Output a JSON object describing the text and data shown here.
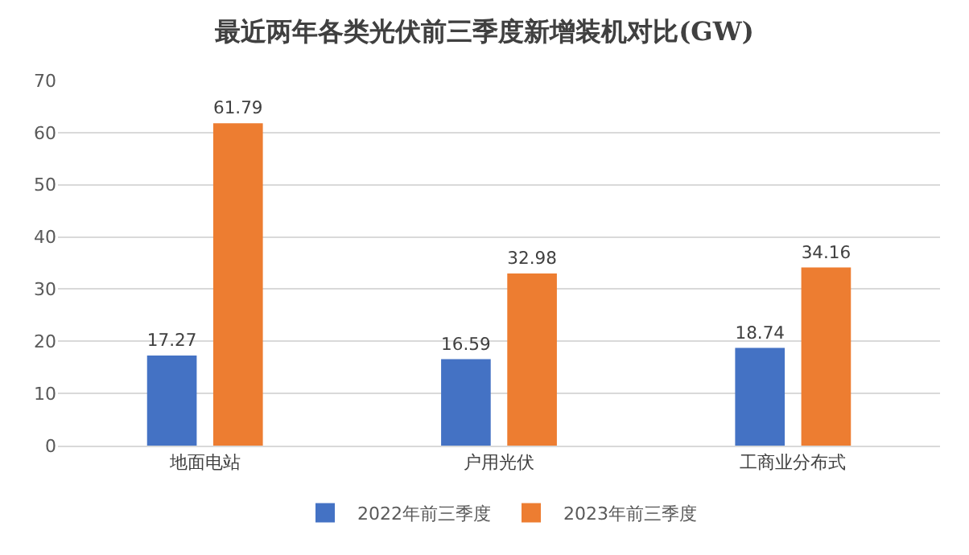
{
  "chart_data": {
    "type": "bar",
    "title": "最近两年各类光伏前三季度新增装机对比(GW)",
    "categories": [
      "地面电站",
      "户用光伏",
      "工商业分布式"
    ],
    "series": [
      {
        "name": "2022年前三季度",
        "color": "#4472c4",
        "values": [
          17.27,
          16.59,
          18.74
        ]
      },
      {
        "name": "2023年前三季度",
        "color": "#ed7d31",
        "values": [
          61.79,
          32.98,
          34.16
        ]
      }
    ],
    "ylim": [
      0,
      70
    ],
    "yticks": [
      0,
      10,
      20,
      30,
      40,
      50,
      60,
      70
    ],
    "grid": "y",
    "legend": "bottom",
    "data_labels": true
  }
}
